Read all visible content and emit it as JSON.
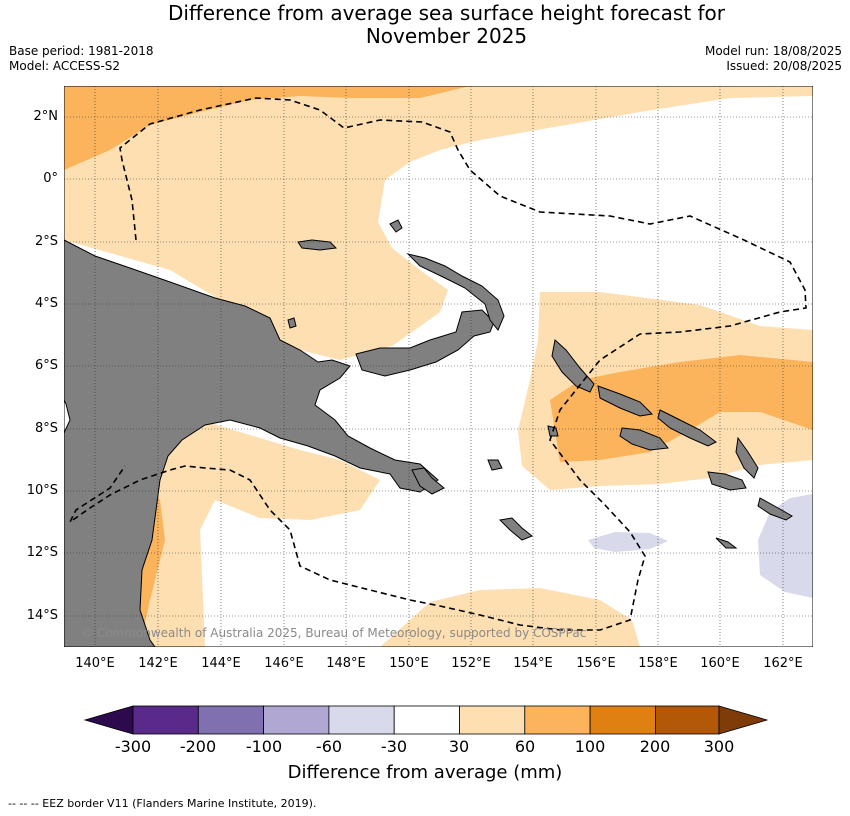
{
  "title_line1": "Difference from average sea surface height forecast for",
  "title_line2": "November 2025",
  "meta_left": [
    "Base period: 1981-2018",
    "Model: ACCESS-S2"
  ],
  "meta_right": [
    "Model run: 18/08/2025",
    "Issued: 20/08/2025"
  ],
  "lat_labels": [
    "2°N",
    "0°",
    "2°S",
    "4°S",
    "6°S",
    "8°S",
    "10°S",
    "12°S",
    "14°S"
  ],
  "lon_labels": [
    "140°E",
    "142°E",
    "144°E",
    "146°E",
    "148°E",
    "150°E",
    "152°E",
    "154°E",
    "156°E",
    "158°E",
    "160°E",
    "162°E"
  ],
  "copyright": "© Commonwealth of Australia 2025, Bureau of Meteorology, supported by COSPPac",
  "colorbar": {
    "ticks": [
      "-300",
      "-200",
      "-100",
      "-60",
      "-30",
      "30",
      "60",
      "100",
      "200",
      "300"
    ],
    "colors": [
      "#2d0a4e",
      "#5a2a8a",
      "#8070b0",
      "#b0a8d2",
      "#d8d9ea",
      "#ffffff",
      "#fddfb2",
      "#fbb35c",
      "#e08012",
      "#b35806",
      "#7f3b08"
    ],
    "label": "Difference from average (mm)"
  },
  "footnote": "--  --  -- EEZ border V11 (Flanders Marine Institute, 2019).",
  "colors": {
    "land": "#808080",
    "grid": "#333333"
  }
}
